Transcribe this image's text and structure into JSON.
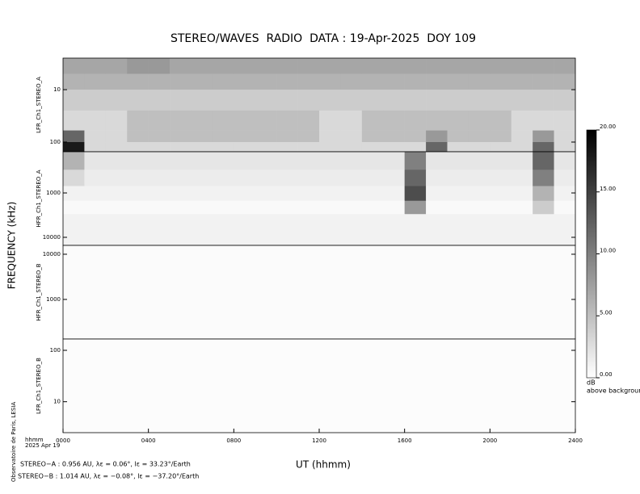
{
  "chart_data": {
    "type": "spectrogram",
    "title": "STEREO/WAVES  RADIO  DATA : 19-Apr-2025  DOY 109",
    "x_label": "UT (hhmm)",
    "y_label": "FREQUENCY (kHz)",
    "xlim": [
      0,
      24
    ],
    "xticks": [
      {
        "value": 0,
        "label": "0000"
      },
      {
        "value": 4,
        "label": "0400"
      },
      {
        "value": 8,
        "label": "0800"
      },
      {
        "value": 12,
        "label": "1200"
      },
      {
        "value": 16,
        "label": "1600"
      },
      {
        "value": 20,
        "label": "2000"
      },
      {
        "value": 24,
        "label": "2400"
      }
    ],
    "log_y": true,
    "colorbar": {
      "label": "dB",
      "sublabel": "above background",
      "zlim": [
        0,
        20
      ],
      "ticks": [
        {
          "value": 0,
          "label": "0.00"
        },
        {
          "value": 5,
          "label": "5.00"
        },
        {
          "value": 10,
          "label": "10.00"
        },
        {
          "value": 15,
          "label": "15.00"
        },
        {
          "value": 20,
          "label": "20.00"
        }
      ]
    },
    "panels": [
      {
        "name": "LFR_Ch1_STEREO_A",
        "ylim": [
          2.5,
          153
        ],
        "yticks": [
          10,
          100
        ],
        "y_bins": [
          2.5,
          5,
          10,
          25,
          60,
          100,
          153
        ],
        "z": [
          [
            7,
            7,
            7,
            8,
            8,
            7,
            7,
            7,
            7,
            7,
            7,
            7,
            7,
            7,
            7,
            7,
            7,
            7,
            7,
            7,
            7,
            7,
            7,
            7
          ],
          [
            6,
            6,
            6,
            6,
            6,
            6,
            6,
            6,
            6,
            6,
            6,
            6,
            6,
            6,
            6,
            6,
            6,
            6,
            6,
            6,
            6,
            6,
            6,
            6
          ],
          [
            4,
            4,
            4,
            4,
            4,
            4,
            4,
            4,
            4,
            4,
            4,
            4,
            4,
            4,
            4,
            4,
            4,
            4,
            4,
            4,
            4,
            4,
            4,
            4
          ],
          [
            3,
            3,
            3,
            5,
            5,
            5,
            5,
            5,
            5,
            5,
            5,
            5,
            3,
            3,
            5,
            5,
            5,
            5,
            5,
            5,
            5,
            3,
            3,
            3
          ],
          [
            12,
            3,
            3,
            5,
            5,
            5,
            5,
            5,
            5,
            5,
            5,
            5,
            3,
            3,
            5,
            5,
            5,
            8,
            5,
            5,
            5,
            3,
            8,
            3
          ],
          [
            18,
            3,
            3,
            3,
            3,
            3,
            3,
            3,
            3,
            3,
            3,
            3,
            3,
            3,
            3,
            3,
            3,
            12,
            3,
            3,
            3,
            3,
            12,
            3
          ]
        ]
      },
      {
        "name": "HFR_Ch1_STEREO_A",
        "ylim": [
          118,
          15200
        ],
        "yticks": [
          1000,
          10000
        ],
        "y_bins": [
          118,
          300,
          700,
          1500,
          3000,
          15200
        ],
        "z": [
          [
            6,
            2,
            2,
            2,
            2,
            2,
            2,
            2,
            2,
            2,
            2,
            2,
            2,
            2,
            2,
            2,
            10,
            2,
            2,
            2,
            2,
            2,
            12,
            2
          ],
          [
            3,
            1.5,
            1.5,
            1.5,
            1.5,
            1.5,
            1.5,
            1.5,
            1.5,
            1.5,
            1.5,
            1.5,
            1.5,
            1.5,
            1.5,
            1.5,
            12,
            1.5,
            1.5,
            1.5,
            1.5,
            1.5,
            10,
            1.5
          ],
          [
            1,
            1,
            1,
            1,
            1,
            1,
            1,
            1,
            1,
            1,
            1,
            1,
            1,
            1,
            1,
            1,
            14,
            1,
            1,
            1,
            1,
            1,
            6,
            1
          ],
          [
            0.5,
            0.5,
            0.5,
            0.5,
            0.5,
            0.5,
            0.5,
            0.5,
            0.5,
            0.5,
            0.5,
            0.5,
            0.5,
            0.5,
            0.5,
            0.5,
            8,
            0.5,
            0.5,
            0.5,
            0.5,
            0.5,
            4,
            0.5
          ],
          [
            1,
            1,
            1,
            1,
            1,
            1,
            1,
            1,
            1,
            1,
            1,
            1,
            1,
            1,
            1,
            1,
            1,
            1,
            1,
            1,
            1,
            1,
            1,
            1
          ]
        ]
      },
      {
        "name": "HFR_Ch1_STEREO_B",
        "ylim": [
          15700,
          133
        ],
        "yticks": [
          10000,
          1000
        ],
        "y_bins": [
          15700,
          133
        ],
        "z": [
          [
            0.3,
            0.3,
            0.3,
            0.3,
            0.3,
            0.3,
            0.3,
            0.3,
            0.3,
            0.3,
            0.3,
            0.3,
            0.3,
            0.3,
            0.3,
            0.3,
            0.3,
            0.3,
            0.3,
            0.3,
            0.3,
            0.3,
            0.3,
            0.3
          ]
        ]
      },
      {
        "name": "LFR_Ch1_STEREO_B",
        "ylim": [
          166,
          2.5
        ],
        "yticks": [
          100,
          10
        ],
        "y_bins": [
          166,
          2.5
        ],
        "z": [
          [
            0.2,
            0.2,
            0.2,
            0.2,
            0.2,
            0.2,
            0.2,
            0.2,
            0.2,
            0.2,
            0.2,
            0.2,
            0.2,
            0.2,
            0.2,
            0.2,
            0.2,
            0.2,
            0.2,
            0.2,
            0.2,
            0.2,
            0.2,
            0.2
          ]
        ]
      }
    ],
    "annotations": {
      "hhmm": "hhmm",
      "date": "2025 Apr 19",
      "credit": "Observatoire de Paris, LESIA",
      "stereo_a": "STEREO−A : 0.956 AU, λε = 0.06°, lε = 33.23°/Earth",
      "stereo_b": "STEREO−B : 1.014 AU, λε = −0.08°, lε = −37.20°/Earth"
    }
  }
}
